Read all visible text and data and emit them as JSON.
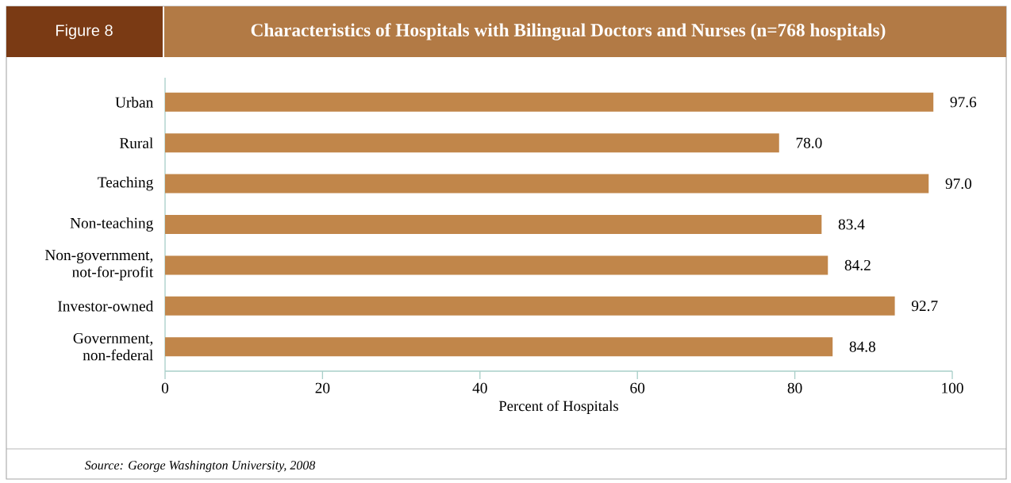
{
  "chart_data": {
    "type": "bar",
    "orientation": "horizontal",
    "title": "Characteristics of Hospitals with Bilingual Doctors and Nurses (n=768 hospitals)",
    "xlabel": "Percent of Hospitals",
    "annotations": [
      "Figure 8",
      "Source: George Washington University, 2008"
    ],
    "categories": [
      "Urban",
      "Rural",
      "Teaching",
      "Non-teaching",
      "Non-government, not-for-profit",
      "Investor-owned",
      "Government, non-federal"
    ],
    "values": [
      97.6,
      78.0,
      97.0,
      83.4,
      84.2,
      92.7,
      84.8
    ],
    "value_labels": [
      "97.6",
      "78.0",
      "97.0",
      "83.4",
      "84.2",
      "92.7",
      "84.8"
    ],
    "color": "#c1864a",
    "xlim": [
      0,
      100
    ],
    "xticks": [
      0,
      20,
      40,
      60,
      80,
      100
    ],
    "grid": false
  }
}
